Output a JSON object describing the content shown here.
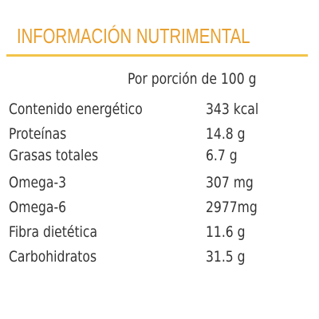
{
  "title": "INFORMACIÓN NUTRIMENTAL",
  "colors": {
    "title": "#e8a030",
    "rule": "#f2c44a",
    "text": "#333333"
  },
  "serving": "Por porción de 100 g",
  "rows": [
    {
      "label": "Contenido energético",
      "value": "343 kcal"
    },
    {
      "label": "Proteínas",
      "value": "14.8 g"
    },
    {
      "label": "Grasas totales",
      "value": "6.7 g"
    },
    {
      "label": "Omega-3",
      "value": "307 mg"
    },
    {
      "label": "Omega-6",
      "value": "2977mg"
    },
    {
      "label": "Fibra dietética",
      "value": "11.6 g"
    },
    {
      "label": "Carbohidratos",
      "value": "31.5 g"
    }
  ]
}
